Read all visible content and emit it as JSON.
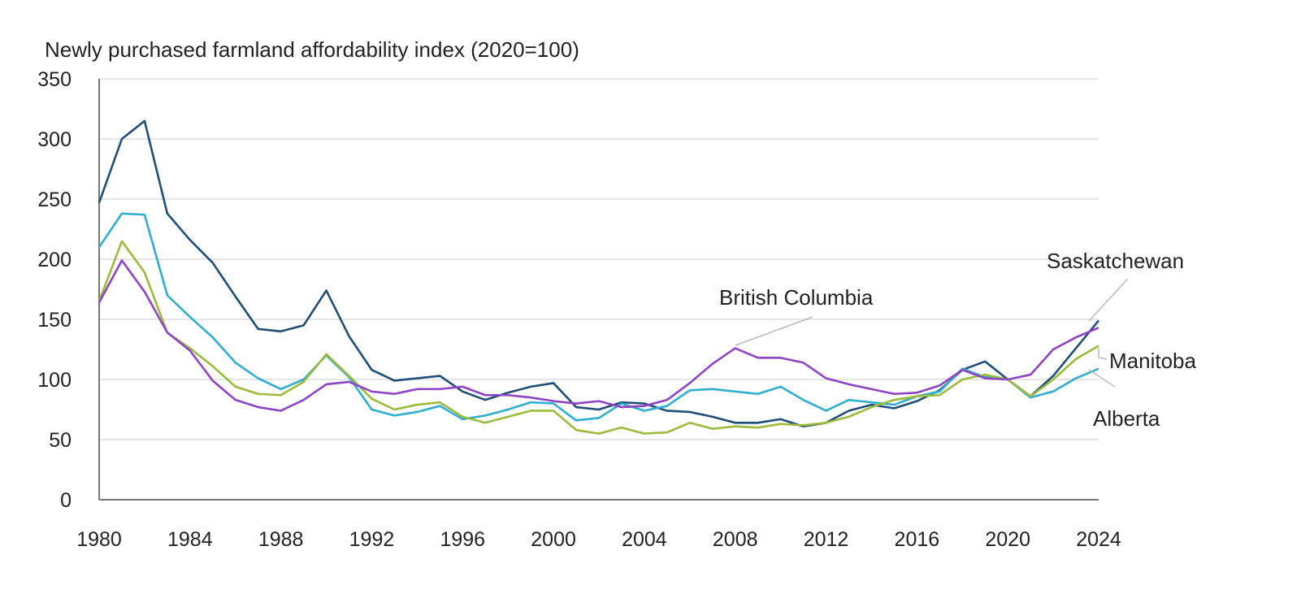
{
  "chart_data": {
    "type": "line",
    "title": "Newly purchased farmland affordability index (2020=100)",
    "xlabel": "",
    "ylabel": "",
    "xlim": [
      1980,
      2024
    ],
    "ylim": [
      0,
      350
    ],
    "x_ticks": [
      1980,
      1984,
      1988,
      1992,
      1996,
      2000,
      2004,
      2008,
      2012,
      2016,
      2020,
      2024
    ],
    "y_ticks": [
      0,
      50,
      100,
      150,
      200,
      250,
      300,
      350
    ],
    "grid": "horizontal",
    "legend": "direct labels",
    "x": [
      1980,
      1981,
      1982,
      1983,
      1984,
      1985,
      1986,
      1987,
      1988,
      1989,
      1990,
      1991,
      1992,
      1993,
      1994,
      1995,
      1996,
      1997,
      1998,
      1999,
      2000,
      2001,
      2002,
      2003,
      2004,
      2005,
      2006,
      2007,
      2008,
      2009,
      2010,
      2011,
      2012,
      2013,
      2014,
      2015,
      2016,
      2017,
      2018,
      2019,
      2020,
      2021,
      2022,
      2023,
      2024
    ],
    "series": [
      {
        "name": "Saskatchewan",
        "color": "#1f4e79",
        "values": [
          247,
          300,
          315,
          238,
          216,
          197,
          169,
          142,
          140,
          145,
          174,
          136,
          108,
          99,
          101,
          103,
          90,
          83,
          89,
          94,
          97,
          77,
          75,
          81,
          80,
          74,
          73,
          69,
          64,
          64,
          67,
          61,
          64,
          74,
          79,
          76,
          82,
          91,
          108,
          115,
          100,
          86,
          103,
          126,
          149
        ]
      },
      {
        "name": "Alberta",
        "color": "#2eaed1",
        "values": [
          210,
          238,
          237,
          170,
          152,
          135,
          114,
          101,
          92,
          100,
          120,
          102,
          75,
          70,
          73,
          78,
          67,
          70,
          75,
          81,
          80,
          66,
          68,
          80,
          74,
          78,
          91,
          92,
          90,
          88,
          94,
          83,
          74,
          83,
          81,
          79,
          86,
          90,
          109,
          102,
          100,
          85,
          90,
          101,
          109
        ]
      },
      {
        "name": "Manitoba",
        "color": "#9bbb3b",
        "values": [
          165,
          215,
          189,
          139,
          126,
          111,
          94,
          88,
          87,
          98,
          121,
          103,
          84,
          75,
          79,
          81,
          69,
          64,
          69,
          74,
          74,
          58,
          55,
          60,
          55,
          56,
          64,
          59,
          61,
          60,
          63,
          62,
          64,
          69,
          77,
          83,
          86,
          87,
          100,
          104,
          100,
          86,
          100,
          117,
          128
        ]
      },
      {
        "name": "British Columbia",
        "color": "#8e44c4",
        "values": [
          164,
          199,
          173,
          139,
          124,
          99,
          83,
          77,
          74,
          83,
          96,
          98,
          90,
          88,
          92,
          92,
          94,
          87,
          87,
          85,
          82,
          80,
          82,
          77,
          78,
          83,
          97,
          113,
          126,
          118,
          118,
          114,
          101,
          96,
          92,
          88,
          89,
          95,
          108,
          101,
          100,
          104,
          125,
          135,
          143
        ]
      }
    ]
  }
}
